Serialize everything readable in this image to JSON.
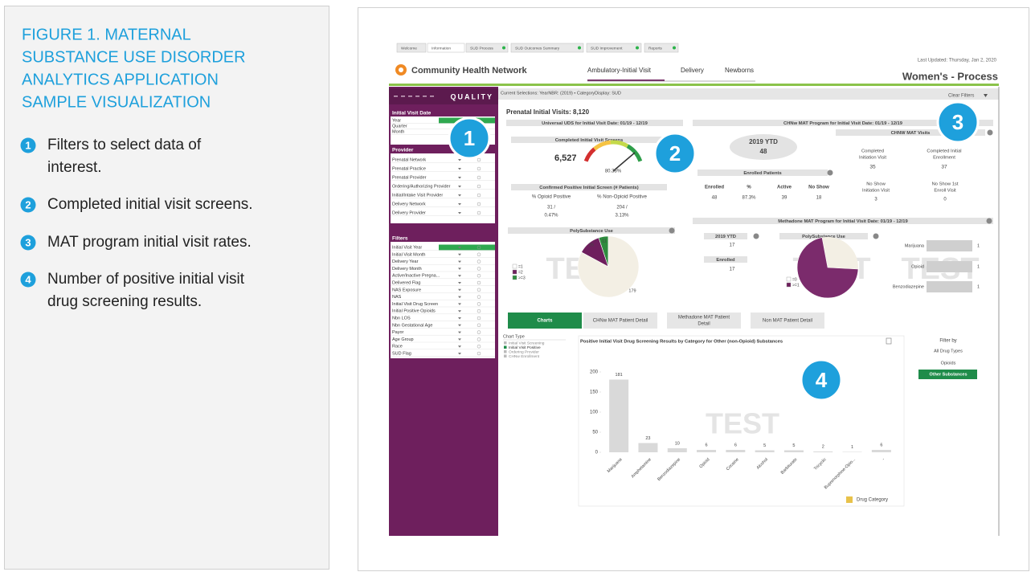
{
  "figure": {
    "title": [
      "FIGURE 1. MATERNAL",
      "SUBSTANCE USE DISORDER",
      "ANALYTICS APPLICATION",
      "SAMPLE VISUALIZATION"
    ],
    "items": [
      {
        "marker": "1",
        "text": [
          "Filters to select data of",
          "interest."
        ]
      },
      {
        "marker": "2",
        "text": [
          "Completed initial visit screens."
        ]
      },
      {
        "marker": "3",
        "text": [
          "MAT program initial visit rates."
        ]
      },
      {
        "marker": "4",
        "text": [
          "Number of positive initial visit",
          "drug screening results."
        ]
      }
    ]
  },
  "dashboard": {
    "tabs": [
      "Welcome",
      "Information",
      "SUD Process",
      "SUD Outcomes Summary",
      "SUD Improvement",
      "Reports"
    ],
    "logo": "Community Health Network",
    "nav": [
      "Ambulatory-Initial Visit",
      "Delivery",
      "Newborns"
    ],
    "last_updated": "Last Updated: Thursday, Jan 2, 2020",
    "page_title": "Women's - Process",
    "sidebar": {
      "brand": "QUALITY",
      "date_header": "Initial Visit Date",
      "date_fields": [
        "Year",
        "Quarter",
        "Month"
      ],
      "provider_header": "Provider",
      "provider_fields": [
        "Prenatal Network",
        "Prenatal Practice",
        "Prenatal Provider",
        "Ordering/Authorizing Provider",
        "Initial/Intake Visit Provider",
        "Delivery Network",
        "Delivery Provider"
      ],
      "filters_header": "Filters",
      "filter_fields": [
        "Initial Visit Year",
        "Initial Visit Month",
        "Delivery Year",
        "Delivery Month",
        "Active/Inactive Pregna...",
        "Delivered Flag",
        "NAS Exposure",
        "NAS",
        "Initial Visit Drug Screen",
        "Initial Positive Opioids",
        "Nbn LOS",
        "Nbn Gestational Age",
        "Payor",
        "Age Group",
        "Race",
        "SUD Flag"
      ]
    },
    "selections": "Current Selections: YearNBR: (2019) • CategoryDisplay: SUD",
    "clear_filters": "Clear Filters",
    "prenatal_visits": "Prenatal Initial Visits: 8,120",
    "uds": {
      "title": "Universal UDS for Initial Visit Date: 01/19 - 12/19",
      "screens_title": "Completed Initial Visit Screens",
      "screens": "6,527",
      "screens_pct": "80.38%",
      "confirmed_title": "Confirmed Positive Initial Screen (# Patients)",
      "opioid_header": "% Opioid Positive",
      "non_opioid_header": "% Non-Opioid Positive",
      "opioid": [
        "31 /",
        "0.47%"
      ],
      "non_opioid": [
        "204 /",
        "3.13%"
      ],
      "poly_title": "PolySubstance Use",
      "poly_legend": [
        "=1",
        "=2",
        ">=3"
      ],
      "poly_values": [
        26,
        11,
        179
      ]
    },
    "chnw": {
      "title": "CHNw MAT Program for Initial Visit Date: 01/19 - 12/19",
      "ytd_label": "2019 YTD",
      "ytd": "48",
      "visits_title": "CHNW MAT Visits",
      "completed_initiation": [
        "Completed",
        "Initiation Visit"
      ],
      "completed_initiation_value": "35",
      "completed_enrollment": [
        "Completed Initial",
        "Enrollment"
      ],
      "completed_enrollment_value": "37",
      "enrolled_title": "Enrolled Patients",
      "enrolled_headers": [
        "Enrolled",
        "%",
        "Active",
        "No Show"
      ],
      "enrolled_values": [
        "48",
        "87.3%",
        "39",
        "18"
      ],
      "no_show_initiation": [
        "No Show",
        "Initiation Visit"
      ],
      "no_show_initiation_value": "3",
      "no_show_enroll": [
        "No Show 1st",
        "Enroll Visit"
      ],
      "no_show_enroll_value": "0"
    },
    "methadone": {
      "title": "Methadone MAT Program for Initial Visit Date: 01/19 - 12/19",
      "ytd_label": "2019 YTD",
      "ytd": "17",
      "enrolled_label": "Enrolled",
      "enrolled": "17",
      "poly_title": "PolySubstance Use",
      "poly_legend": [
        "=0",
        ">=1"
      ],
      "substances": [
        "Marijuana",
        "Opioid",
        "Benzodiazepine"
      ],
      "substance_values": [
        1,
        1,
        1
      ]
    },
    "buttons": [
      [
        "Charts"
      ],
      [
        "CHNw MAT Patient Detail"
      ],
      [
        "Methadone MAT Patient",
        "Detail"
      ],
      [
        "Non MAT Patient Detail"
      ]
    ],
    "chart_type": {
      "label": "Chart Type",
      "options": [
        "Initial Visit Screening",
        "Initial Visit Positive",
        "Ordering Provider",
        "CHNw Enrollment"
      ]
    },
    "chart": {
      "title": "Positive Initial Visit Drug Screening Results by Category for Other (non-Opioid) Substances",
      "categories": [
        "Marijuana",
        "Amphetamine",
        "Benzodiazepine",
        "Opioid",
        "Cocaine",
        "Alcohol",
        "Barbiturate",
        "Tricyclic",
        "Buprenorphine-Opio...",
        "-"
      ],
      "values": [
        181,
        23,
        10,
        6,
        6,
        5,
        5,
        2,
        1,
        6
      ],
      "ylim": [
        0,
        200
      ],
      "yticks": [
        0,
        50,
        100,
        150,
        200
      ],
      "x_label": "Drug Category",
      "color": "#d9d9d9"
    },
    "filter_by": {
      "label": "Filter by",
      "options": [
        "All Drug Types",
        "Opioids",
        "Other Substances"
      ]
    },
    "watermark": "TEST",
    "callouts": [
      "1",
      "2",
      "3",
      "4"
    ]
  }
}
